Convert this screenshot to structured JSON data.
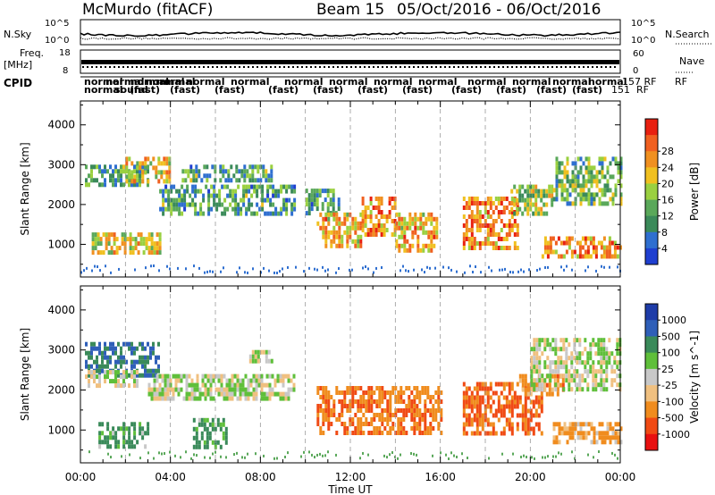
{
  "header": {
    "station": "McMurdo (fitACF)",
    "beam": "Beam 15",
    "date_range": "05/Oct/2016 - 06/Oct/2016"
  },
  "top_strips": {
    "nsky_label": "N.Sky",
    "nsky_ticks": [
      "10^5",
      "10^0"
    ],
    "nsearch_label": "N.Search",
    "nsearch_ticks": [
      "10^5",
      "10^0"
    ],
    "freq_label": "Freq.",
    "freq_unit": "[MHz]",
    "freq_ticks": [
      "18",
      "8"
    ],
    "nave_label": "Nave",
    "nave_ticks": [
      "60",
      "0"
    ],
    "cpid_label": "CPID",
    "cpid_right": "RF",
    "cpid_upper": [
      "normal",
      "normal",
      "normal",
      "normal"
    ],
    "cpid_lower": [
      "normal",
      "sound",
      "(fast)",
      "(fast)",
      "(fast)"
    ],
    "cpid_tail_upper": "157 RF",
    "cpid_tail_lower": "151"
  },
  "chart_data": [
    {
      "type": "heatmap",
      "name": "power",
      "ylabel": "Slant Range [km]",
      "xlabel": "",
      "ylim": [
        180,
        4600
      ],
      "xlim_hours": [
        0,
        24
      ],
      "yticks": [
        1000,
        2000,
        3000,
        4000
      ],
      "colorbar": {
        "label": "Power [dB]",
        "ticks": [
          "4",
          "8",
          "12",
          "16",
          "20",
          "24",
          "28"
        ],
        "colors": [
          "#1f3fd0",
          "#2f6fd0",
          "#3b8a5a",
          "#5aa85a",
          "#9ad040",
          "#f0c020",
          "#f09020",
          "#f06020",
          "#e82010"
        ],
        "range": [
          0,
          30
        ]
      },
      "echo_regions": [
        {
          "t0": 0.2,
          "t1": 3.0,
          "r0": 2500,
          "r1": 3000,
          "level": 10
        },
        {
          "t0": 2.0,
          "t1": 4.0,
          "r0": 2600,
          "r1": 3200,
          "level": 18
        },
        {
          "t0": 0.5,
          "t1": 3.5,
          "r0": 750,
          "r1": 1300,
          "level": 18
        },
        {
          "t0": 3.5,
          "t1": 9.5,
          "r0": 1800,
          "r1": 2500,
          "level": 10
        },
        {
          "t0": 4.5,
          "t1": 8.5,
          "r0": 2600,
          "r1": 3000,
          "level": 10
        },
        {
          "t0": 10.0,
          "t1": 11.5,
          "r0": 1800,
          "r1": 2400,
          "level": 10
        },
        {
          "t0": 10.5,
          "t1": 12.5,
          "r0": 1000,
          "r1": 1800,
          "level": 20
        },
        {
          "t0": 12.5,
          "t1": 14.0,
          "r0": 1200,
          "r1": 2200,
          "level": 22
        },
        {
          "t0": 14.0,
          "t1": 15.8,
          "r0": 900,
          "r1": 1800,
          "level": 20
        },
        {
          "t0": 17.0,
          "t1": 19.5,
          "r0": 900,
          "r1": 2200,
          "level": 22
        },
        {
          "t0": 19.0,
          "t1": 21.0,
          "r0": 1800,
          "r1": 2500,
          "level": 14
        },
        {
          "t0": 20.5,
          "t1": 24.0,
          "r0": 750,
          "r1": 1200,
          "level": 22
        },
        {
          "t0": 21.0,
          "t1": 24.0,
          "r0": 2000,
          "r1": 3200,
          "level": 12
        }
      ]
    },
    {
      "type": "heatmap",
      "name": "velocity",
      "ylabel": "Slant Range [km]",
      "xlabel": "Time UT",
      "ylim": [
        180,
        4600
      ],
      "xlim_hours": [
        0,
        24
      ],
      "yticks": [
        1000,
        2000,
        3000,
        4000
      ],
      "xticks": [
        "00:00",
        "04:00",
        "08:00",
        "12:00",
        "16:00",
        "20:00",
        "00:00"
      ],
      "colorbar": {
        "label": "Velocity [m s^-1]",
        "ticks": [
          "1000",
          "500",
          "100",
          "25",
          "-25",
          "-100",
          "-500",
          "-1000"
        ],
        "colors": [
          "#1e3ca8",
          "#2f5fb8",
          "#3a8a5a",
          "#5fbf3a",
          "#c8c8c8",
          "#f0c080",
          "#f08c1e",
          "#f04a14",
          "#e81010"
        ],
        "range": [
          -1000,
          1000
        ]
      },
      "echo_regions": [
        {
          "t0": 0.2,
          "t1": 3.5,
          "r0": 2400,
          "r1": 3200,
          "vel": 500
        },
        {
          "t0": 0.2,
          "t1": 2.5,
          "r0": 2100,
          "r1": 2500,
          "vel": 0
        },
        {
          "t0": 0.8,
          "t1": 3.0,
          "r0": 600,
          "r1": 1200,
          "vel": 200
        },
        {
          "t0": 3.0,
          "t1": 9.5,
          "r0": 1800,
          "r1": 2400,
          "vel": 0
        },
        {
          "t0": 5.0,
          "t1": 6.5,
          "r0": 600,
          "r1": 1300,
          "vel": 200
        },
        {
          "t0": 7.5,
          "t1": 8.5,
          "r0": 2700,
          "r1": 3000,
          "vel": 0
        },
        {
          "t0": 10.5,
          "t1": 16.0,
          "r0": 900,
          "r1": 2100,
          "vel": -400
        },
        {
          "t0": 17.0,
          "t1": 20.5,
          "r0": 900,
          "r1": 2200,
          "vel": -600
        },
        {
          "t0": 19.5,
          "t1": 21.5,
          "r0": 1900,
          "r1": 2400,
          "vel": -300
        },
        {
          "t0": 20.0,
          "t1": 24.0,
          "r0": 2000,
          "r1": 3300,
          "vel": 0
        },
        {
          "t0": 21.0,
          "t1": 24.0,
          "r0": 700,
          "r1": 1200,
          "vel": -200
        }
      ]
    }
  ]
}
